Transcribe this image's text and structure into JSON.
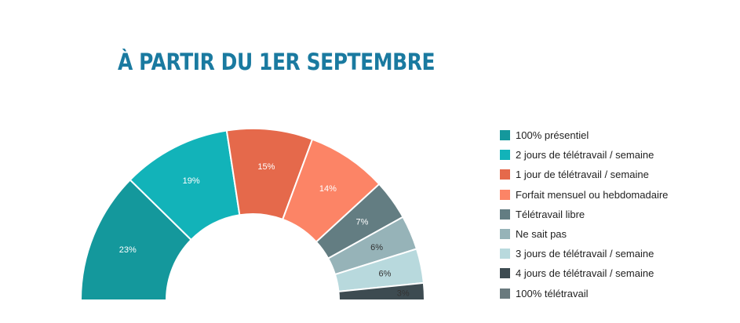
{
  "chart_data": {
    "type": "pie",
    "title": "À PARTIR DU 1ER SEPTEMBRE",
    "legend_position": "right",
    "slices": [
      {
        "label": "100% présentiel",
        "value": 23,
        "value_label": "23%",
        "color": "#14989c"
      },
      {
        "label": "2 jours de télétravail / semaine",
        "value": 19,
        "value_label": "19%",
        "color": "#12b3b9"
      },
      {
        "label": "1 jour de télétravail / semaine",
        "value": 15,
        "value_label": "15%",
        "color": "#e5694b"
      },
      {
        "label": "Forfait mensuel ou hebdomadaire",
        "value": 14,
        "value_label": "14%",
        "color": "#fc8466"
      },
      {
        "label": "Télétravail libre",
        "value": 7,
        "value_label": "7%",
        "color": "#637d82"
      },
      {
        "label": "Ne sait pas",
        "value": 6,
        "value_label": "6%",
        "color": "#96b3b8"
      },
      {
        "label": "3 jours de télétravail / semaine",
        "value": 6,
        "value_label": "6%",
        "color": "#b8d9dd"
      },
      {
        "label": "4 jours de télétravail / semaine",
        "value": 3,
        "value_label": "3%",
        "color": "#3d4b51"
      },
      {
        "label": "100% télétravail",
        "value": 0,
        "value_label": "",
        "color": "#6a7a7e"
      }
    ]
  }
}
